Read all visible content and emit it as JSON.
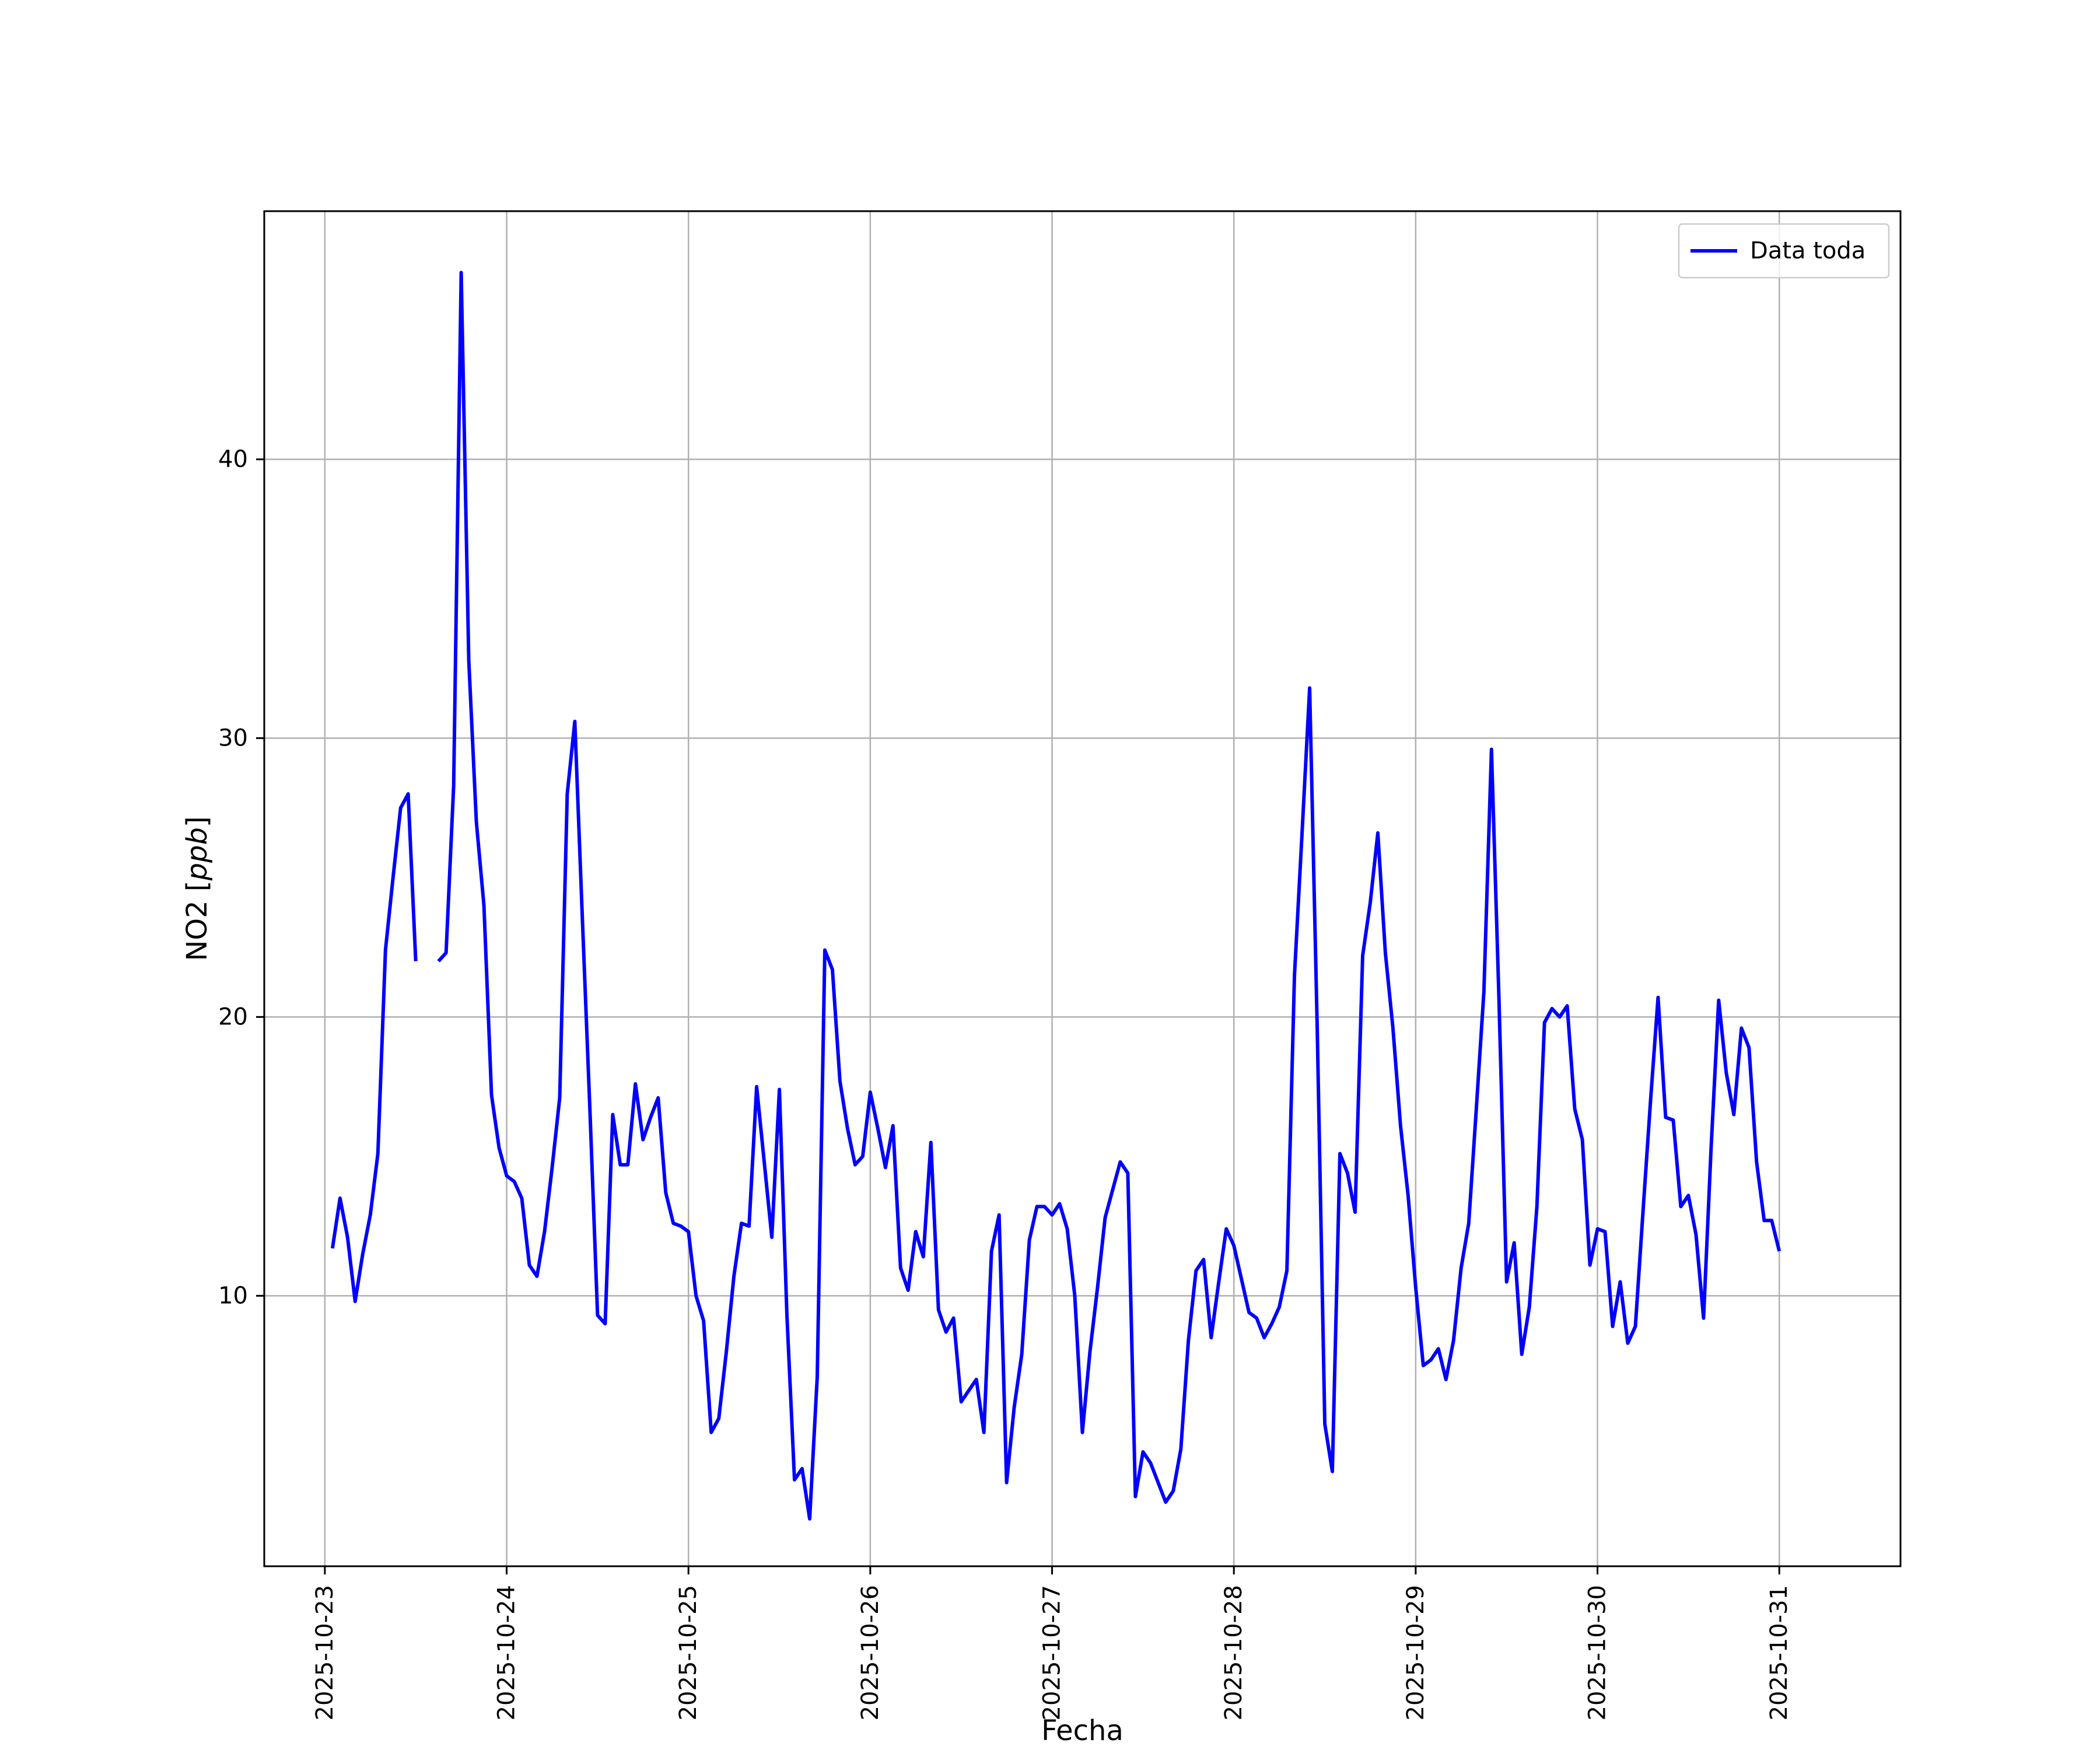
{
  "chart_data": {
    "type": "line",
    "xlabel": "Fecha",
    "ylabel_main": "NO2 [",
    "ylabel_unit": "ppb",
    "ylabel_close": "]",
    "x_start": "2025-10-23 01:00",
    "x_step_hours": 1,
    "x_ticks": [
      "2025-10-23",
      "2025-10-24",
      "2025-10-25",
      "2025-10-26",
      "2025-10-27",
      "2025-10-28",
      "2025-10-29",
      "2025-10-30",
      "2025-10-31"
    ],
    "y_ticks": [
      10,
      20,
      30,
      40
    ],
    "xlim": [
      "2025-10-22 16:00",
      "2025-10-31 16:00"
    ],
    "ylim": [
      0.3,
      48.9
    ],
    "grid": true,
    "legend_position": "top-right",
    "colors": {
      "series": "#0000ff",
      "grid": "#b0b0b0"
    },
    "series": [
      {
        "name": "Data toda",
        "values": [
          11.7,
          13.5,
          12.1,
          9.8,
          11.5,
          12.9,
          15.1,
          22.4,
          25.0,
          27.5,
          28.0,
          22.0,
          null,
          null,
          22.0,
          22.3,
          28.3,
          46.7,
          32.8,
          27.0,
          24.0,
          17.2,
          15.3,
          14.3,
          14.1,
          13.5,
          11.1,
          10.7,
          12.3,
          14.6,
          17.1,
          28.0,
          30.6,
          23.5,
          16.6,
          9.3,
          9.0,
          16.5,
          14.7,
          14.7,
          17.6,
          15.6,
          16.4,
          17.1,
          13.7,
          12.6,
          12.5,
          12.3,
          10.0,
          9.1,
          5.1,
          5.6,
          8.0,
          10.7,
          12.6,
          12.5,
          17.5,
          14.8,
          12.1,
          17.4,
          9.3,
          3.4,
          3.8,
          2.0,
          7.1,
          22.4,
          21.7,
          17.7,
          16.0,
          14.7,
          15.0,
          17.3,
          16.0,
          14.6,
          16.1,
          11.0,
          10.2,
          12.3,
          11.4,
          15.5,
          9.5,
          8.7,
          9.2,
          6.2,
          6.6,
          7.0,
          5.1,
          11.6,
          12.9,
          3.3,
          6.0,
          7.9,
          12.0,
          13.2,
          13.2,
          12.9,
          13.3,
          12.4,
          10.0,
          5.1,
          8.0,
          10.3,
          12.8,
          13.8,
          14.8,
          14.4,
          2.8,
          4.4,
          4.0,
          3.3,
          2.6,
          3.0,
          4.5,
          8.4,
          10.9,
          11.3,
          8.5,
          10.5,
          12.4,
          11.8,
          10.6,
          9.4,
          9.2,
          8.5,
          9.0,
          9.6,
          10.9,
          21.5,
          26.6,
          31.8,
          19.6,
          5.4,
          3.7,
          15.1,
          14.4,
          13.0,
          22.2,
          24.1,
          26.6,
          22.3,
          19.6,
          16.1,
          13.6,
          10.3,
          7.5,
          7.7,
          8.1,
          7.0,
          8.4,
          11.0,
          12.6,
          16.7,
          20.9,
          29.6,
          20.6,
          10.5,
          11.9,
          7.9,
          9.6,
          13.2,
          19.8,
          20.3,
          20.0,
          20.4,
          16.7,
          15.6,
          11.1,
          12.4,
          12.3,
          8.9,
          10.5,
          8.3,
          8.9,
          13.0,
          17.0,
          20.7,
          16.4,
          16.3,
          13.2,
          13.6,
          12.2,
          9.2,
          15.3,
          20.6,
          18.0,
          16.5,
          19.6,
          18.9,
          14.8,
          12.7,
          12.7,
          11.6
        ]
      }
    ]
  }
}
